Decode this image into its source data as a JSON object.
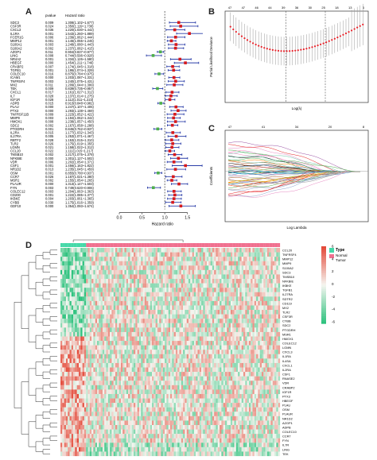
{
  "panels": {
    "a": "A",
    "b": "B",
    "c": "C",
    "d": "D"
  },
  "chart_data": [
    {
      "panel": "A",
      "type": "forest",
      "columns": {
        "gene": "",
        "pvalue": "pvalue",
        "hr": "Hazard ratio"
      },
      "xlabel": "Hazard ratio",
      "xticks": [
        0.0,
        0.5,
        1.0,
        1.5
      ],
      "xlim": [
        0.0,
        1.75
      ],
      "reference_line": 1.0,
      "rows": [
        {
          "gene": "SDC3",
          "p": "0.009",
          "hr_text": "1.308(1.102~1.677)",
          "hr": 1.308,
          "lo": 1.102,
          "hi": 1.677
        },
        {
          "gene": "CSF3R",
          "p": "0.024",
          "hr_text": "1.350(1.119~1.730)",
          "hr": 1.35,
          "lo": 1.119,
          "hi": 1.73
        },
        {
          "gene": "CXCL3",
          "p": "0.036",
          "hr_text": "1.220(1.030~1.442)",
          "hr": 1.22,
          "lo": 1.03,
          "hi": 1.442
        },
        {
          "gene": "IL1RA",
          "p": "0.001",
          "hr_text": "1.543(1.260~1.889)",
          "hr": 1.543,
          "lo": 1.26,
          "hi": 1.889
        },
        {
          "gene": "FCER1G",
          "p": "0.006",
          "hr_text": "1.239(1.062~1.444)",
          "hr": 1.239,
          "lo": 1.062,
          "hi": 1.444
        },
        {
          "gene": "MMP12",
          "p": "0.001",
          "hr_text": "1.146(1.055~1.245)",
          "hr": 1.146,
          "lo": 1.055,
          "hi": 1.245
        },
        {
          "gene": "S100A1",
          "p": "0.003",
          "hr_text": "1.248(1.080~1.443)",
          "hr": 1.248,
          "lo": 1.08,
          "hi": 1.443
        },
        {
          "gene": "S100A2",
          "p": "0.002",
          "hr_text": "1.237(1.082~1.415)",
          "hr": 1.237,
          "lo": 1.082,
          "hi": 1.415
        },
        {
          "gene": "AZGP1",
          "p": "0.011",
          "hr_text": "0.904(0.837~0.977)",
          "hr": 0.904,
          "lo": 0.837,
          "hi": 0.977
        },
        {
          "gene": "LING",
          "p": "0.008",
          "hr_text": "0.744(0.596~0.928)",
          "hr": 0.744,
          "lo": 0.596,
          "hi": 0.928
        },
        {
          "gene": "NR4A2",
          "p": "0.001",
          "hr_text": "1.334(1.126~1.580)",
          "hr": 1.334,
          "lo": 1.126,
          "hi": 1.58
        },
        {
          "gene": "HBEGF",
          "p": "0.000",
          "hr_text": "1.454(1.211~1.746)",
          "hr": 1.454,
          "lo": 1.211,
          "hi": 1.746
        },
        {
          "gene": "CRABP2",
          "p": "0.007",
          "hr_text": "1.174(1.045~1.318)",
          "hr": 1.174,
          "lo": 1.045,
          "hi": 1.318
        },
        {
          "gene": "TGFB1",
          "p": "0.001",
          "hr_text": "1.195(1.074~1.329)",
          "hr": 1.195,
          "lo": 1.074,
          "hi": 1.329
        },
        {
          "gene": "COLEC10",
          "p": "0.016",
          "hr_text": "0.875(0.784~0.975)",
          "hr": 0.875,
          "lo": 0.784,
          "hi": 0.975
        },
        {
          "gene": "ICAM1",
          "p": "0.000",
          "hr_text": "1.203(1.087~1.331)",
          "hr": 1.203,
          "lo": 1.087,
          "hi": 1.331
        },
        {
          "gene": "TNFRSF4",
          "p": "0.003",
          "hr_text": "1.240(1.075~1.431)",
          "hr": 1.24,
          "lo": 1.075,
          "hi": 1.431
        },
        {
          "gene": "MX2",
          "p": "0.011",
          "hr_text": "1.209(1.044~1.399)",
          "hr": 1.209,
          "lo": 1.044,
          "hi": 1.399
        },
        {
          "gene": "TEK",
          "p": "0.009",
          "hr_text": "0.839(0.735~0.957)",
          "hr": 0.839,
          "lo": 0.735,
          "hi": 0.957
        },
        {
          "gene": "CXCL1",
          "p": "0.017",
          "hr_text": "1.161(1.027~1.312)",
          "hr": 1.161,
          "lo": 1.027,
          "hi": 1.312
        },
        {
          "gene": "IL7",
          "p": "0.028",
          "hr_text": "1.137(1.014~1.275)",
          "hr": 1.137,
          "lo": 1.014,
          "hi": 1.275
        },
        {
          "gene": "IGF1R",
          "p": "0.028",
          "hr_text": "1.112(1.011~1.223)",
          "hr": 1.112,
          "lo": 1.011,
          "hi": 1.223
        },
        {
          "gene": "ADPB",
          "p": "0.015",
          "hr_text": "0.913(0.848~0.982)",
          "hr": 0.913,
          "lo": 0.848,
          "hi": 0.982
        },
        {
          "gene": "PLAU",
          "p": "0.000",
          "hr_text": "1.247(1.107~1.405)",
          "hr": 1.247,
          "lo": 1.107,
          "hi": 1.405
        },
        {
          "gene": "PTX3",
          "p": "0.000",
          "hr_text": "1.293(1.138~1.469)",
          "hr": 1.293,
          "lo": 1.138,
          "hi": 1.469
        },
        {
          "gene": "TNFRSF11B",
          "p": "0.009",
          "hr_text": "1.223(1.052~1.422)",
          "hr": 1.223,
          "lo": 1.052,
          "hi": 1.422
        },
        {
          "gene": "MMP9",
          "p": "0.003",
          "hr_text": "1.194(1.062~1.342)",
          "hr": 1.194,
          "lo": 1.062,
          "hi": 1.342
        },
        {
          "gene": "HMOX1",
          "p": "0.008",
          "hr_text": "1.238(1.057~1.450)",
          "hr": 1.238,
          "lo": 1.057,
          "hi": 1.45
        },
        {
          "gene": "SDC2",
          "p": "0.002",
          "hr_text": "1.167(1.058~1.288)",
          "hr": 1.167,
          "lo": 1.058,
          "hi": 1.288
        },
        {
          "gene": "PTGDRH",
          "p": "0.001",
          "hr_text": "0.845(0.762~0.937)",
          "hr": 0.845,
          "lo": 0.762,
          "hi": 0.937
        },
        {
          "gene": "IL2RA",
          "p": "0.015",
          "hr_text": "1.177(1.032~1.343)",
          "hr": 1.177,
          "lo": 1.032,
          "hi": 1.343
        },
        {
          "gene": "IL27RA",
          "p": "0.005",
          "hr_text": "1.253(1.071~1.467)",
          "hr": 1.253,
          "lo": 1.071,
          "hi": 1.467
        },
        {
          "gene": "RBTF2",
          "p": "0.028",
          "hr_text": "1.153(1.015~1.310)",
          "hr": 1.153,
          "lo": 1.015,
          "hi": 1.31
        },
        {
          "gene": "TLR2",
          "p": "0.026",
          "hr_text": "1.175(1.019~1.355)",
          "hr": 1.175,
          "lo": 1.019,
          "hi": 1.355
        },
        {
          "gene": "LGMN",
          "p": "0.021",
          "hr_text": "1.158(1.022~1.312)",
          "hr": 1.158,
          "lo": 1.022,
          "hi": 1.312
        },
        {
          "gene": "CCL20",
          "p": "0.022",
          "hr_text": "1.111(1.015~1.217)",
          "hr": 1.111,
          "lo": 1.015,
          "hi": 1.217
        },
        {
          "gene": "TMSB10",
          "p": "0.002",
          "hr_text": "1.217(1.075~1.378)",
          "hr": 1.217,
          "lo": 1.075,
          "hi": 1.378
        },
        {
          "gene": "NFKBIE",
          "p": "0.000",
          "hr_text": "1.301(1.127~1.502)",
          "hr": 1.301,
          "lo": 1.127,
          "hi": 1.502
        },
        {
          "gene": "VDR",
          "p": "0.006",
          "hr_text": "1.202(1.054~1.371)",
          "hr": 1.202,
          "lo": 1.054,
          "hi": 1.371
        },
        {
          "gene": "CSF1",
          "p": "0.001",
          "hr_text": "1.456(1.163~1.822)",
          "hr": 1.456,
          "lo": 1.163,
          "hi": 1.822
        },
        {
          "gene": "NR1D2",
          "p": "0.013",
          "hr_text": "1.235(1.045~1.459)",
          "hr": 1.235,
          "lo": 1.045,
          "hi": 1.459
        },
        {
          "gene": "OSM",
          "p": "0.001",
          "hr_text": "0.855(0.780~0.937)",
          "hr": 0.855,
          "lo": 0.78,
          "hi": 0.937
        },
        {
          "gene": "CCR7",
          "p": "0.026",
          "hr_text": "1.187(1.021~1.380)",
          "hr": 1.187,
          "lo": 1.021,
          "hi": 1.38
        },
        {
          "gene": "MSR1",
          "p": "0.002",
          "hr_text": "1.155(1.054~1.265)",
          "hr": 1.155,
          "lo": 1.054,
          "hi": 1.265
        },
        {
          "gene": "PLAUR",
          "p": "0.000",
          "hr_text": "1.313(1.147~1.503)",
          "hr": 1.313,
          "lo": 1.147,
          "hi": 1.503
        },
        {
          "gene": "FYN",
          "p": "0.003",
          "hr_text": "0.749(0.620~0.906)",
          "hr": 0.749,
          "lo": 0.62,
          "hi": 0.906
        },
        {
          "gene": "COLEC12",
          "p": "0.003",
          "hr_text": "1.204(1.063~1.363)",
          "hr": 1.204,
          "lo": 1.063,
          "hi": 1.363
        },
        {
          "gene": "CD200",
          "p": "0.001",
          "hr_text": "1.222(1.085~1.377)",
          "hr": 1.222,
          "lo": 1.085,
          "hi": 1.377
        },
        {
          "gene": "IKBKE",
          "p": "0.004",
          "hr_text": "1.203(1.061~1.365)",
          "hr": 1.203,
          "lo": 1.061,
          "hi": 1.365
        },
        {
          "gene": "CYBB",
          "p": "0.030",
          "hr_text": "1.175(1.016~1.359)",
          "hr": 1.175,
          "lo": 1.016,
          "hi": 1.359
        },
        {
          "gene": "GDF10",
          "p": "0.000",
          "hr_text": "1.354(1.093~1.674)",
          "hr": 1.354,
          "lo": 1.093,
          "hi": 1.674
        }
      ],
      "colors": {
        "risk": "#d7191c",
        "protective": "#4daf4a",
        "ci": "#2b3ea8"
      }
    },
    {
      "panel": "B",
      "type": "line",
      "xlabel": "Log(λ)",
      "ylabel": "Partial Likelihood Deviance",
      "top_axis_ticks": [
        "47",
        "47",
        "46",
        "44",
        "39",
        "36",
        "30",
        "25",
        "18",
        "13",
        "6"
      ],
      "points": 48,
      "x_range": [
        -7,
        1
      ],
      "lambda_min_log": -3.6,
      "lambda_1se_log": -1.4,
      "colors": {
        "point": "#e8222a",
        "error_bar": "#999999"
      }
    },
    {
      "panel": "C",
      "type": "line",
      "xlabel": "Log Lambda",
      "ylabel": "Coefficients",
      "top_axis_ticks": [
        "47",
        "41",
        "34",
        "20",
        "8"
      ],
      "x_range": [
        -8,
        -1
      ],
      "series_count": 48
    },
    {
      "panel": "D",
      "type": "heatmap",
      "legend_title": "Type",
      "groups": [
        "Normal",
        "Tumor"
      ],
      "group_colors": {
        "Normal": "#45d9a8",
        "Tumor": "#f0708f"
      },
      "scale_ticks": [
        "6",
        "4",
        "2",
        "0",
        "-2",
        "-4",
        "-6"
      ],
      "row_genes": [
        "CCL20",
        "TNFRSF4",
        "MMP12",
        "MMP9",
        "S100A2",
        "SDC3",
        "TMSB10",
        "NFKBIE",
        "IKBKE",
        "TGFB1",
        "IL27RA",
        "SDTR2",
        "CD119",
        "MX2",
        "TLR2",
        "CSF3R",
        "CYBB",
        "SDC2",
        "PTGDRH",
        "MSR1",
        "HMOX1",
        "COLEC12",
        "LGMN",
        "CXCL3",
        "IL1RA",
        "IL4SA",
        "CXCL1",
        "IL2RA",
        "CSF1",
        "RNASE2",
        "VDR",
        "CRABP2",
        "IGF1R",
        "PTX3",
        "HBEGF",
        "PLAU",
        "OSM",
        "PLAUR",
        "NR1D2",
        "AZGP1",
        "ADPB",
        "COLEC10",
        "CCR7",
        "FYN",
        "IL7R",
        "LING",
        "TEK"
      ],
      "normal_columns": 14,
      "tumor_columns": 106,
      "colors": {
        "low": "#2ec27e",
        "mid": "#f5f5f0",
        "high": "#e44a3a"
      }
    }
  ]
}
